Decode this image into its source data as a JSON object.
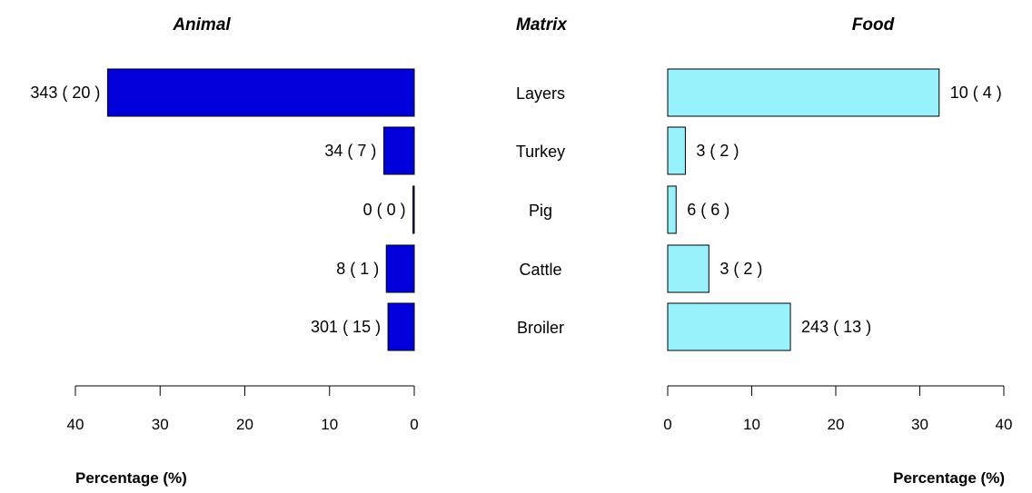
{
  "chart_data": {
    "type": "bar",
    "orientation": "horizontal",
    "layout": "back-to-back",
    "center_title": "Matrix",
    "categories": [
      "Layers",
      "Turkey",
      "Pig",
      "Cattle",
      "Broiler"
    ],
    "panels": [
      {
        "name": "Animal",
        "title": "Animal",
        "direction": "left",
        "color": "#0000dd",
        "values": [
          36.2,
          3.6,
          0.15,
          3.3,
          3.1
        ],
        "labels": [
          "343 ( 20 )",
          "34 ( 7 )",
          "0 ( 0 )",
          "8 ( 1 )",
          "301 ( 15 )"
        ],
        "xlim": [
          0,
          40
        ],
        "ticks": [
          40,
          30,
          20,
          10,
          0
        ],
        "xlabel": "Percentage (%)"
      },
      {
        "name": "Food",
        "title": "Food",
        "direction": "right",
        "color": "#98f2fb",
        "values": [
          32.3,
          2.1,
          1.0,
          4.9,
          14.6
        ],
        "labels": [
          "10 ( 4 )",
          "3 ( 2 )",
          "6 ( 6 )",
          "3 ( 2 )",
          "243 ( 13 )"
        ],
        "xlim": [
          0,
          40
        ],
        "ticks": [
          0,
          10,
          20,
          30,
          40
        ],
        "xlabel": "Percentage (%)"
      }
    ]
  }
}
